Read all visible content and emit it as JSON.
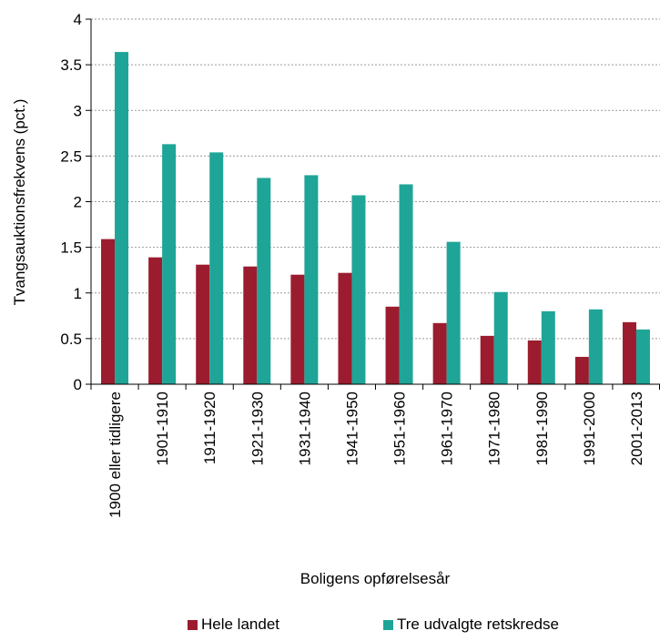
{
  "chart_data": {
    "type": "bar",
    "categories": [
      "1900 eller tidligere",
      "1901-1910",
      "1911-1920",
      "1921-1930",
      "1931-1940",
      "1941-1950",
      "1951-1960",
      "1961-1970",
      "1971-1980",
      "1981-1990",
      "1991-2000",
      "2001-2013"
    ],
    "series": [
      {
        "name": "Hele landet",
        "color": "#9b1c2e",
        "values": [
          1.59,
          1.39,
          1.31,
          1.29,
          1.2,
          1.22,
          0.85,
          0.67,
          0.53,
          0.48,
          0.3,
          0.68
        ]
      },
      {
        "name": "Tre udvalgte retskredse",
        "color": "#1fa597",
        "values": [
          3.64,
          2.63,
          2.54,
          2.26,
          2.29,
          2.07,
          2.19,
          1.56,
          1.01,
          0.8,
          0.82,
          0.6
        ]
      }
    ],
    "xlabel": "Boligens opførelsesår",
    "ylabel": "Tvangsauktionsfrekvens (pct.)",
    "ylim": [
      0,
      4
    ],
    "yticks": [
      "0",
      "0.5",
      "1",
      "1.5",
      "2",
      "2.5",
      "3",
      "3.5",
      "4"
    ],
    "grid": "horizontal dashed",
    "legend": "bottom"
  }
}
